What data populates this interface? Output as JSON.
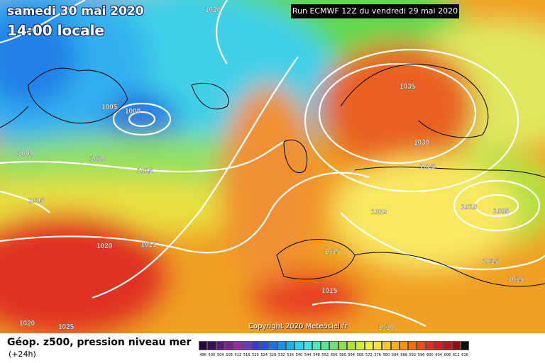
{
  "header": {
    "date_line": "samedi 30 mai 2020",
    "time_line": "14:00 locale",
    "run_info": "Run ECMWF 12Z du vendredi 29 mai 2020"
  },
  "copyright": "Copyright 2020 Meteociel.fr",
  "footer": {
    "title": "Géop. z500, pression niveau mer",
    "lead_time": "(+24h)"
  },
  "isobar_labels": [
    "1020",
    "1005",
    "1000",
    "1000",
    "1010",
    "1015",
    "1005",
    "1020",
    "1015",
    "1020",
    "1025",
    "1035",
    "1030",
    "1025",
    "1020",
    "1010",
    "1005",
    "1015",
    "1015",
    "1015",
    "1010"
  ],
  "color_scale": {
    "labels": [
      "496",
      "500",
      "504",
      "508",
      "512",
      "516",
      "520",
      "524",
      "528",
      "532",
      "536",
      "540",
      "544",
      "548",
      "552",
      "556",
      "560",
      "564",
      "568",
      "572",
      "576",
      "580",
      "584",
      "588",
      "592",
      "596",
      "600",
      "604",
      "608",
      "612",
      "616"
    ],
    "colors": [
      "#2a0a3a",
      "#3d0f5a",
      "#5a1a7a",
      "#7a208f",
      "#9a2aa8",
      "#6a3ab8",
      "#3a3ac8",
      "#2a50d8",
      "#2070e0",
      "#1890e8",
      "#20b0ee",
      "#30d0f0",
      "#40e6e0",
      "#50eab8",
      "#58e890",
      "#70e070",
      "#90e050",
      "#b0e040",
      "#d0e840",
      "#f0f040",
      "#f8e040",
      "#f8c830",
      "#f8b020",
      "#f89018",
      "#f07018",
      "#e85018",
      "#e03020",
      "#d02020",
      "#b81818",
      "#901010",
      "#101010"
    ]
  }
}
